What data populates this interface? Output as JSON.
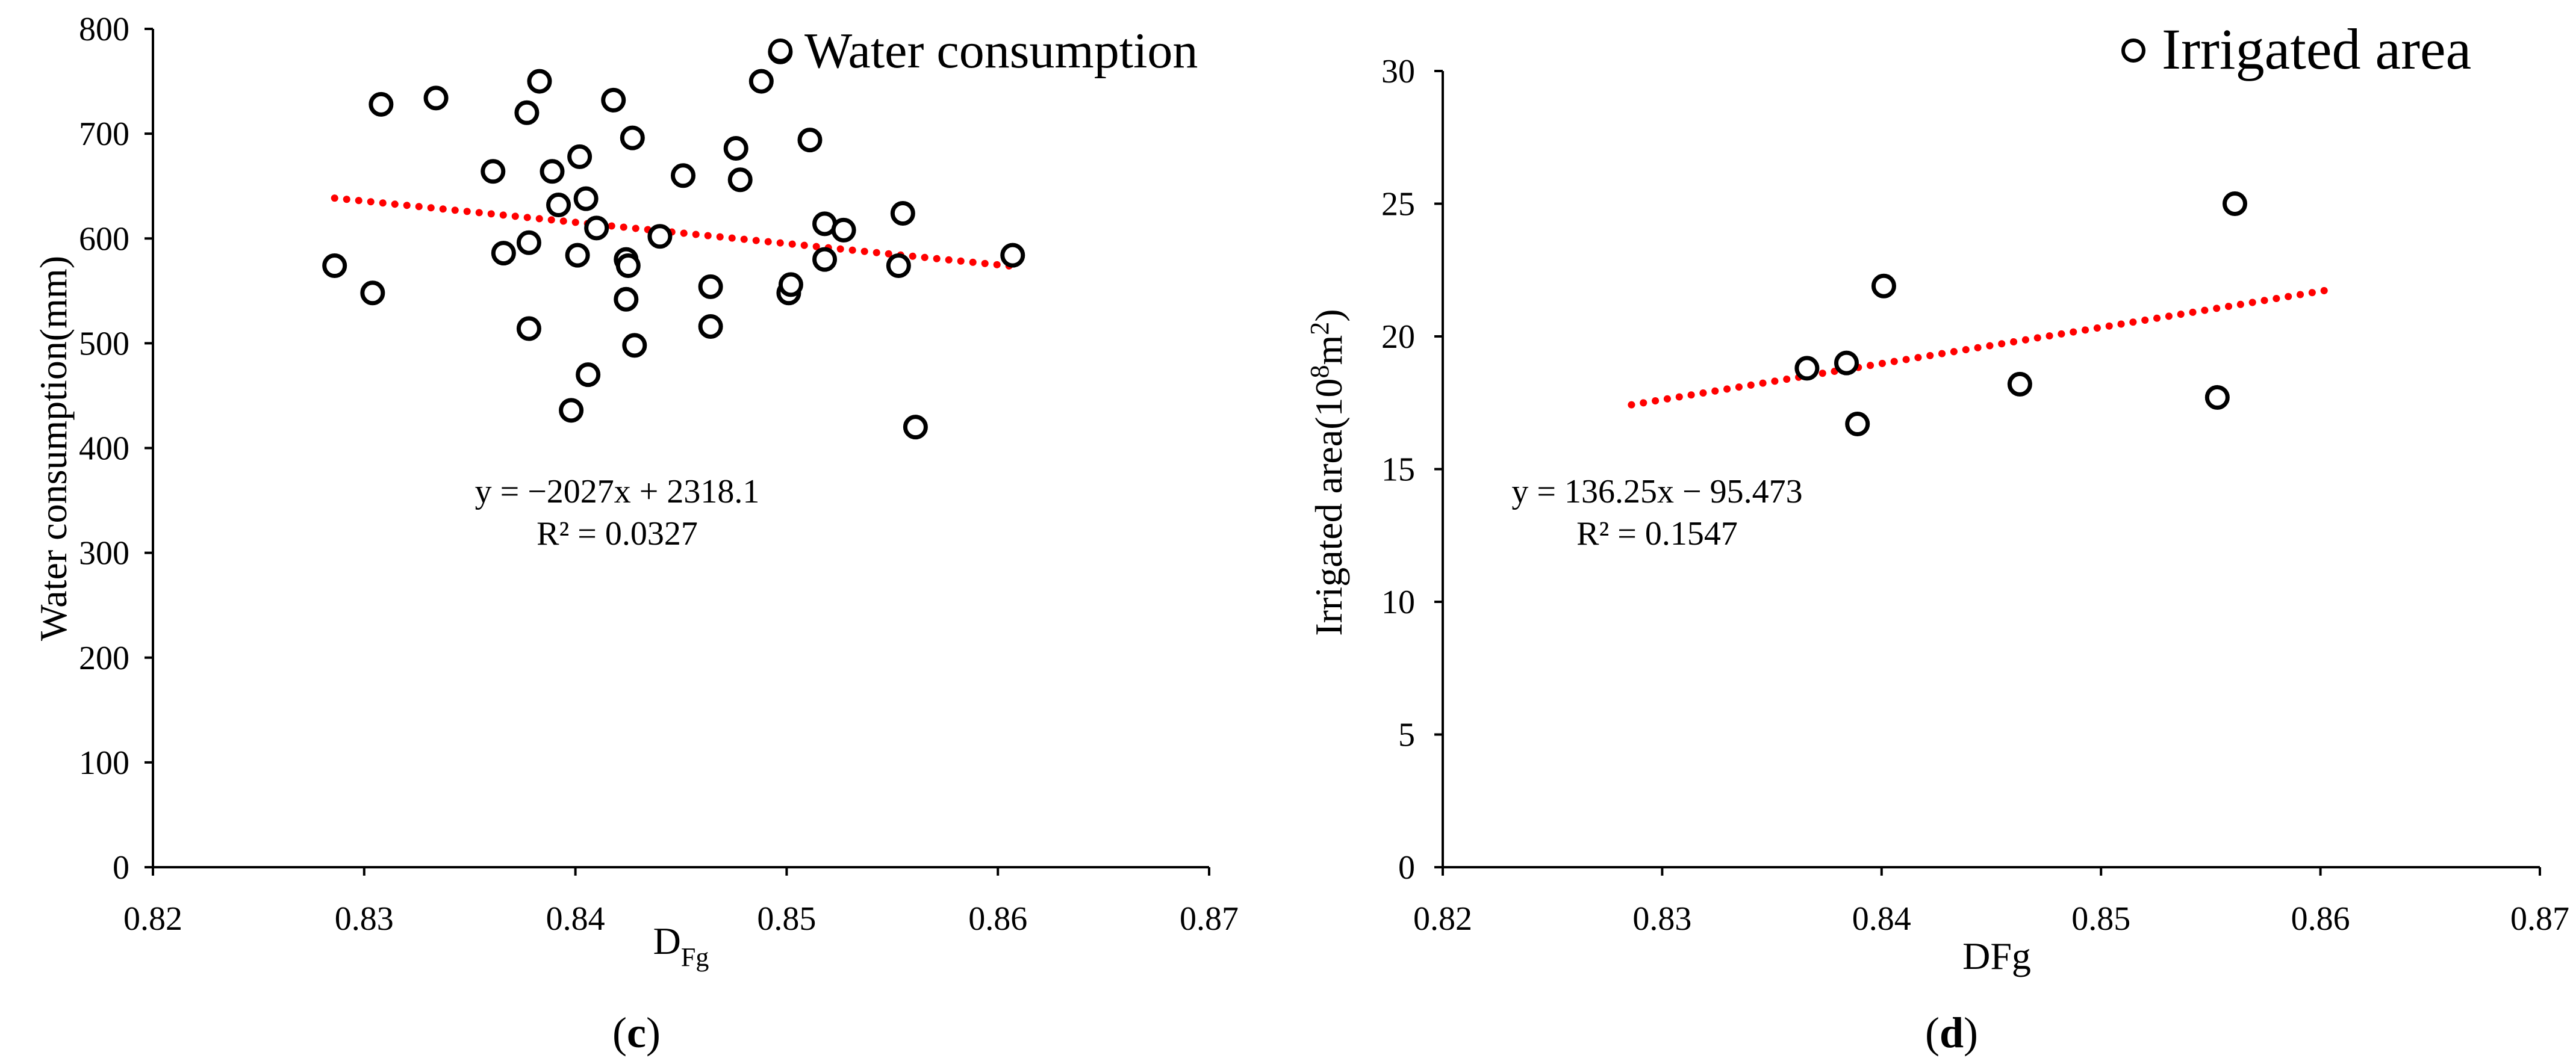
{
  "chart_data": [
    {
      "type": "scatter",
      "panel_label": "c",
      "xlabel": "D",
      "xlabel_sub": "Fg",
      "ylabel": "Water consumption(mm)",
      "xlim": [
        0.82,
        0.87
      ],
      "ylim": [
        0,
        800
      ],
      "x_ticks": [
        "0.82",
        "0.83",
        "0.84",
        "0.85",
        "0.86",
        "0.87"
      ],
      "y_ticks": [
        "0",
        "100",
        "200",
        "300",
        "400",
        "500",
        "600",
        "700",
        "800"
      ],
      "legend": "top-right",
      "grid": false,
      "series": [
        {
          "name": "Water consumption",
          "marker": "circle-open",
          "color": "#000000",
          "points": [
            [
              0.8286,
              574
            ],
            [
              0.8304,
              548
            ],
            [
              0.8308,
              728
            ],
            [
              0.8334,
              734
            ],
            [
              0.8361,
              664
            ],
            [
              0.8366,
              586
            ],
            [
              0.8377,
              720
            ],
            [
              0.8378,
              596
            ],
            [
              0.8378,
              514
            ],
            [
              0.8383,
              750
            ],
            [
              0.8389,
              664
            ],
            [
              0.8392,
              632
            ],
            [
              0.8398,
              436
            ],
            [
              0.8401,
              584
            ],
            [
              0.8402,
              678
            ],
            [
              0.8405,
              638
            ],
            [
              0.8406,
              470
            ],
            [
              0.841,
              610
            ],
            [
              0.8418,
              732
            ],
            [
              0.8424,
              542
            ],
            [
              0.8424,
              580
            ],
            [
              0.8425,
              574
            ],
            [
              0.8427,
              696
            ],
            [
              0.8428,
              498
            ],
            [
              0.844,
              602
            ],
            [
              0.8451,
              660
            ],
            [
              0.8464,
              554
            ],
            [
              0.8464,
              516
            ],
            [
              0.8476,
              686
            ],
            [
              0.8478,
              656
            ],
            [
              0.8488,
              750
            ],
            [
              0.8497,
              778
            ],
            [
              0.8501,
              548
            ],
            [
              0.8502,
              556
            ],
            [
              0.8511,
              694
            ],
            [
              0.8518,
              580
            ],
            [
              0.8518,
              614
            ],
            [
              0.8527,
              608
            ],
            [
              0.8553,
              574
            ],
            [
              0.8555,
              624
            ],
            [
              0.8561,
              420
            ],
            [
              0.8607,
              584
            ]
          ]
        }
      ],
      "trendline": {
        "style": "dotted",
        "color": "#ff0000",
        "x_range": [
          0.8286,
          0.8607
        ],
        "slope": -2027,
        "intercept": 2318.1
      },
      "equation": "y = −2027x + 2318.1",
      "r2": "R² = 0.0327"
    },
    {
      "type": "scatter",
      "panel_label": "d",
      "xlabel": "DFg",
      "ylabel": "Irrigated area(10",
      "ylabel_sup1": "8",
      "ylabel_mid": "m",
      "ylabel_sup2": "2",
      "ylabel_end": ")",
      "xlim": [
        0.82,
        0.87
      ],
      "ylim": [
        0,
        30
      ],
      "x_ticks": [
        "0.82",
        "0.83",
        "0.84",
        "0.85",
        "0.86",
        "0.87"
      ],
      "y_ticks": [
        "0",
        "5",
        "10",
        "15",
        "20",
        "25",
        "30"
      ],
      "legend": "top-right",
      "grid": false,
      "series": [
        {
          "name": "Irrigated area",
          "marker": "circle-open",
          "color": "#000000",
          "points": [
            [
              0.8366,
              18.8
            ],
            [
              0.8384,
              19.0
            ],
            [
              0.8389,
              16.7
            ],
            [
              0.8401,
              21.9
            ],
            [
              0.8463,
              18.2
            ],
            [
              0.8553,
              17.7
            ],
            [
              0.8561,
              25.0
            ]
          ]
        }
      ],
      "trendline": {
        "style": "dotted",
        "color": "#ff0000",
        "x_range": [
          0.8286,
          0.8607
        ],
        "slope": 136.25,
        "intercept": -95.473
      },
      "equation": "y = 136.25x − 95.473",
      "r2": "R² = 0.1547"
    }
  ]
}
